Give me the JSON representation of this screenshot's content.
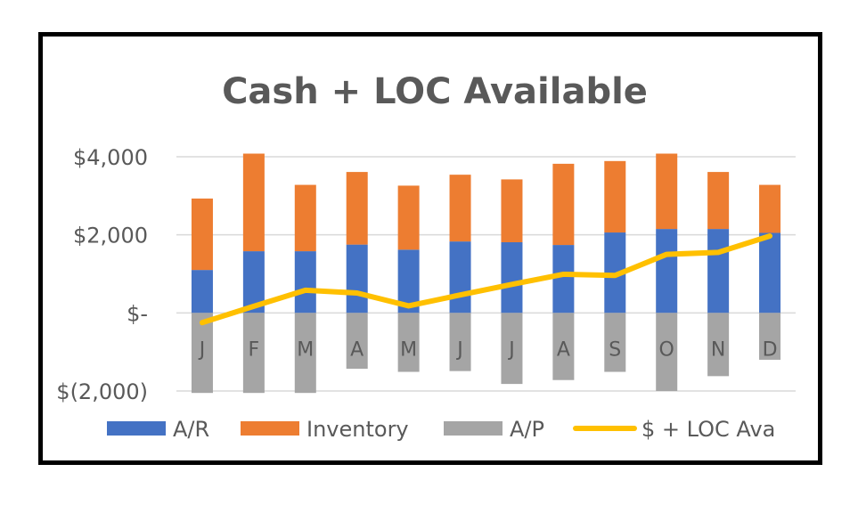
{
  "chart_data": {
    "type": "bar",
    "stacked": true,
    "title": "Cash + LOC Available",
    "categories": [
      "J",
      "F",
      "M",
      "A",
      "M",
      "J",
      "J",
      "A",
      "S",
      "O",
      "N",
      "D"
    ],
    "series": [
      {
        "name": "A/R",
        "kind": "bar",
        "color": "#4472C4",
        "values": [
          1100,
          1580,
          1580,
          1750,
          1620,
          1830,
          1810,
          1740,
          2060,
          2150,
          2150,
          2050
        ]
      },
      {
        "name": "Inventory",
        "kind": "bar",
        "color": "#ED7D31",
        "values": [
          1830,
          2500,
          1700,
          1860,
          1640,
          1710,
          1610,
          2080,
          1830,
          1930,
          1460,
          1230
        ]
      },
      {
        "name": "A/P",
        "kind": "bar",
        "color": "#A5A5A5",
        "values": [
          -2050,
          -2050,
          -2050,
          -1430,
          -1510,
          -1490,
          -1820,
          -1720,
          -1510,
          -2000,
          -1620,
          -1200
        ]
      },
      {
        "name": "$ + LOC Ava",
        "kind": "line",
        "color": "#FFC000",
        "values": [
          -250,
          170,
          580,
          510,
          180,
          460,
          730,
          990,
          960,
          1500,
          1550,
          1970
        ]
      }
    ],
    "yticks": [
      {
        "value": 4000,
        "label": "$4,000"
      },
      {
        "value": 2000,
        "label": "$2,000"
      },
      {
        "value": 0,
        "label": "$-"
      },
      {
        "value": -2000,
        "label": "$(2,000)"
      }
    ],
    "ylim": [
      -2000,
      4000
    ],
    "grid": true,
    "legend_position": "bottom"
  }
}
